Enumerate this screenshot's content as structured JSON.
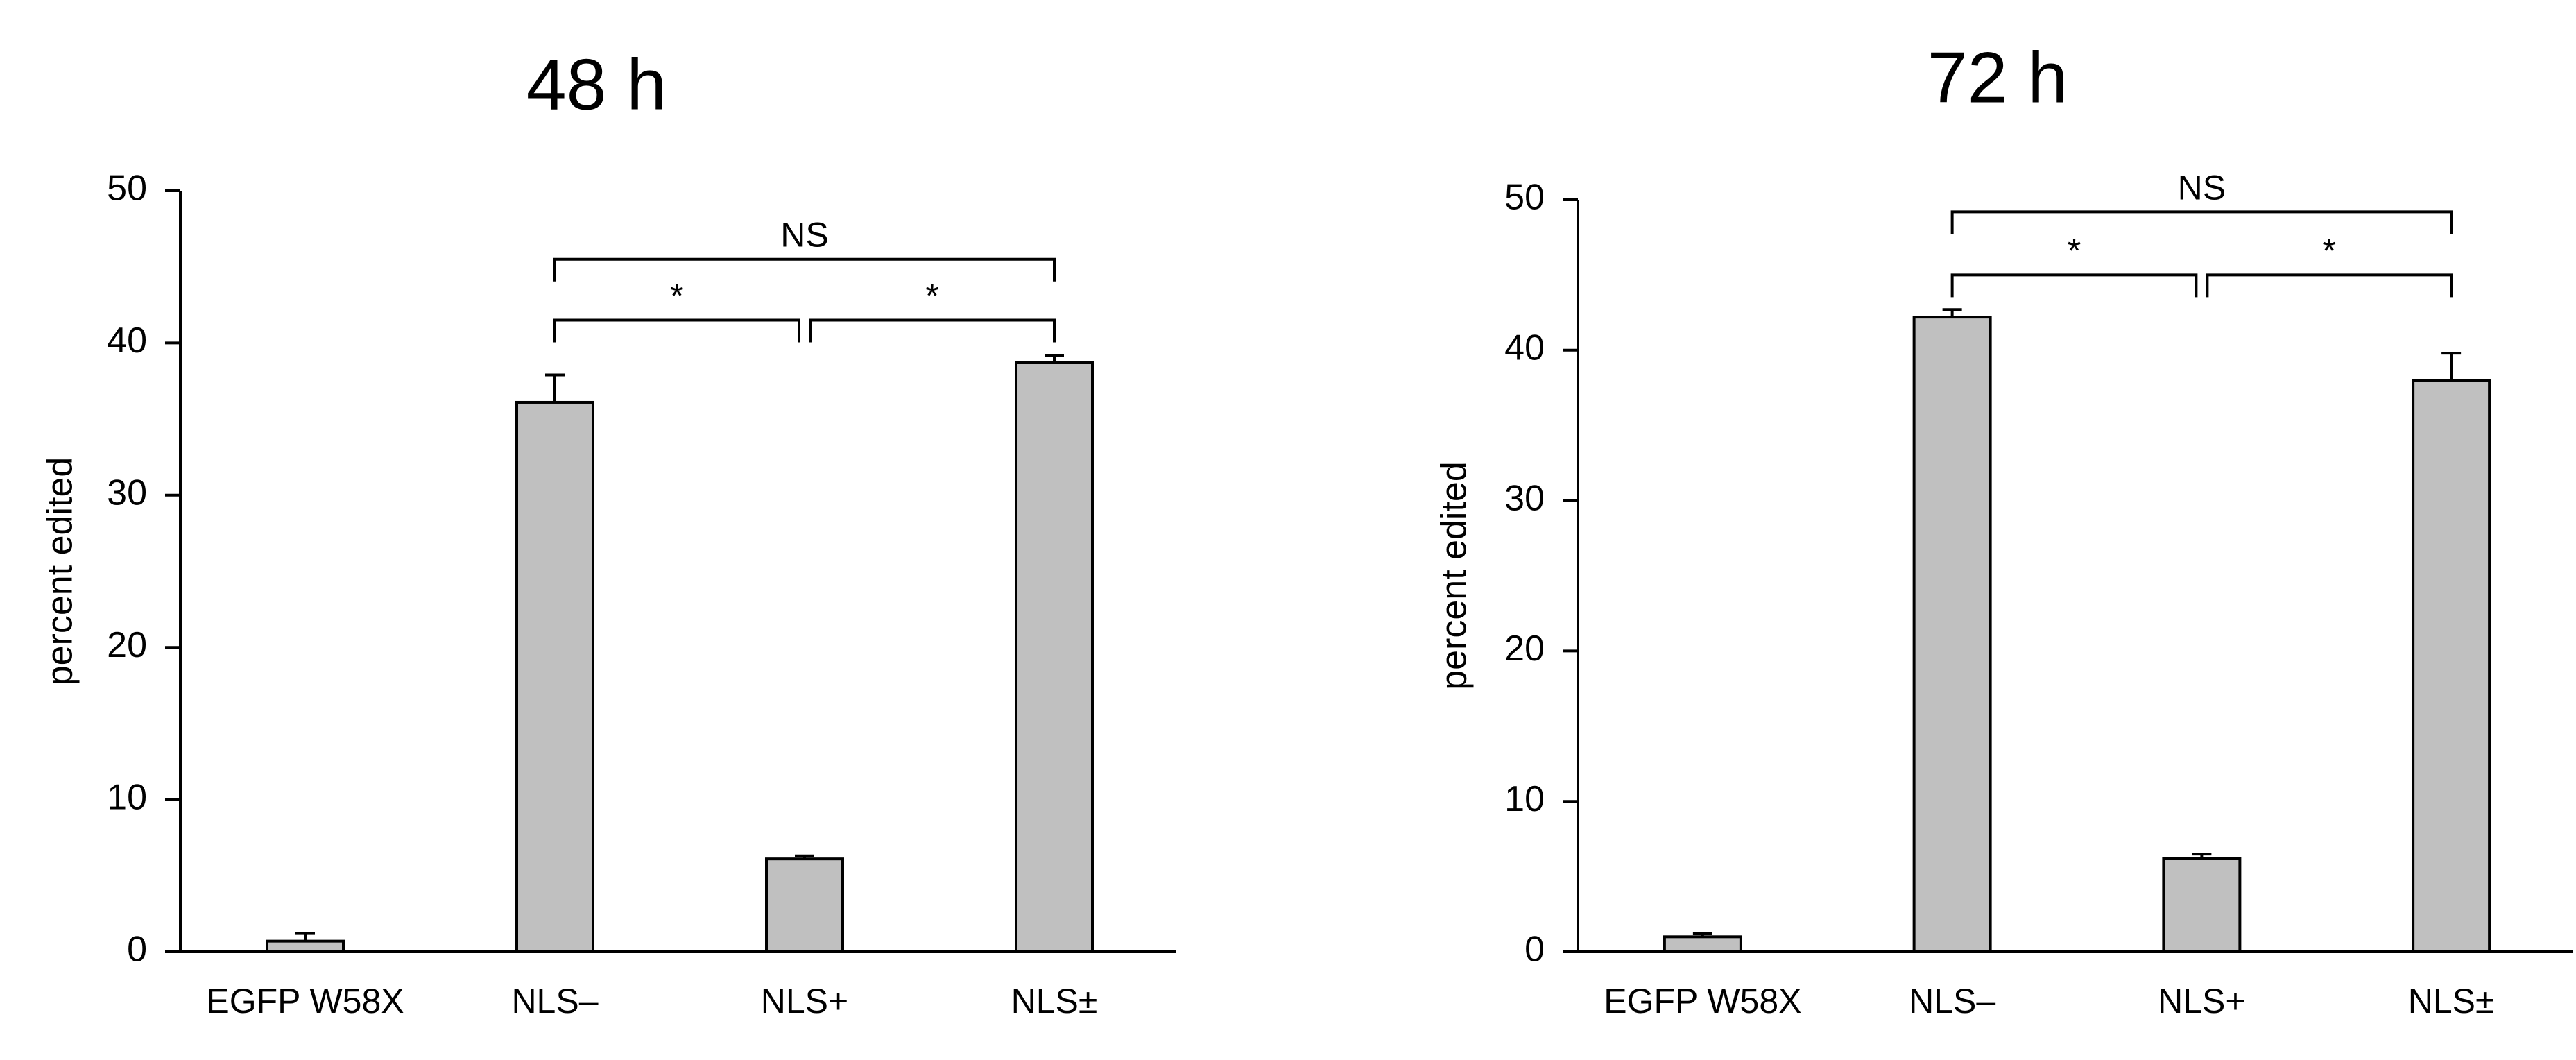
{
  "chart_data": [
    {
      "type": "bar",
      "title": "48 h",
      "ylabel": "percent edited",
      "xlabel": "",
      "ylim": [
        0,
        50
      ],
      "yticks": [
        0,
        10,
        20,
        30,
        40,
        50
      ],
      "grid": false,
      "categories": [
        "EGFP W58X",
        "NLS–",
        "NLS+",
        "NLS±"
      ],
      "values": [
        0.7,
        36.1,
        6.1,
        38.7
      ],
      "errors": [
        0.5,
        1.8,
        0.2,
        0.5
      ],
      "bar_color": "#c0c0c0",
      "significance": [
        {
          "from": 1,
          "to": 3,
          "label": "NS",
          "y": 45.5
        },
        {
          "from": 1,
          "to": 2,
          "label": "*",
          "y": 41.5
        },
        {
          "from": 2,
          "to": 3,
          "label": "*",
          "y": 41.5
        }
      ]
    },
    {
      "type": "bar",
      "title": "72 h",
      "ylabel": "percent edited",
      "xlabel": "",
      "ylim": [
        0,
        50
      ],
      "yticks": [
        0,
        10,
        20,
        30,
        40,
        50
      ],
      "grid": false,
      "categories": [
        "EGFP W58X",
        "NLS–",
        "NLS+",
        "NLS±"
      ],
      "values": [
        1.0,
        42.2,
        6.2,
        38.0
      ],
      "errors": [
        0.2,
        0.5,
        0.3,
        1.8
      ],
      "bar_color": "#c0c0c0",
      "significance": [
        {
          "from": 1,
          "to": 3,
          "label": "NS",
          "y": 49.2
        },
        {
          "from": 1,
          "to": 2,
          "label": "*",
          "y": 45.0
        },
        {
          "from": 2,
          "to": 3,
          "label": "*",
          "y": 45.0
        }
      ]
    }
  ]
}
